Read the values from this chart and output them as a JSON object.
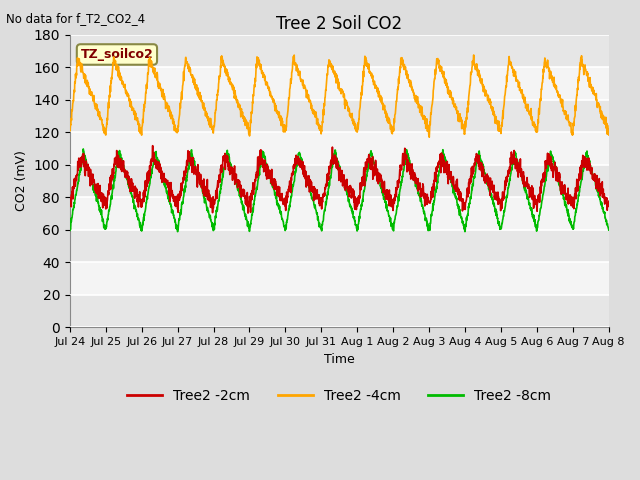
{
  "title": "Tree 2 Soil CO2",
  "top_left_text": "No data for f_T2_CO2_4",
  "ylabel": "CO2 (mV)",
  "xlabel": "Time",
  "annotation_box": "TZ_soilco2",
  "ylim": [
    0,
    180
  ],
  "yticks": [
    0,
    20,
    40,
    60,
    80,
    100,
    120,
    140,
    160,
    180
  ],
  "xtick_labels": [
    "Jul 24",
    "Jul 25",
    "Jul 26",
    "Jul 27",
    "Jul 28",
    "Jul 29",
    "Jul 30",
    "Jul 31",
    "Aug 1",
    "Aug 2",
    "Aug 3",
    "Aug 4",
    "Aug 5",
    "Aug 6",
    "Aug 7",
    "Aug 8"
  ],
  "background_color": "#dddddd",
  "plot_bg_color": "#efefef",
  "grid_color": "#ffffff",
  "orange_color": "#FFA500",
  "red_color": "#CC0000",
  "green_color": "#00BB00",
  "line_width": 1.2,
  "legend_labels": [
    "Tree2 -2cm",
    "Tree2 -4cm",
    "Tree2 -8cm"
  ],
  "legend_colors": [
    "#CC0000",
    "#FFA500",
    "#00BB00"
  ],
  "num_days": 15,
  "points_per_day": 144
}
